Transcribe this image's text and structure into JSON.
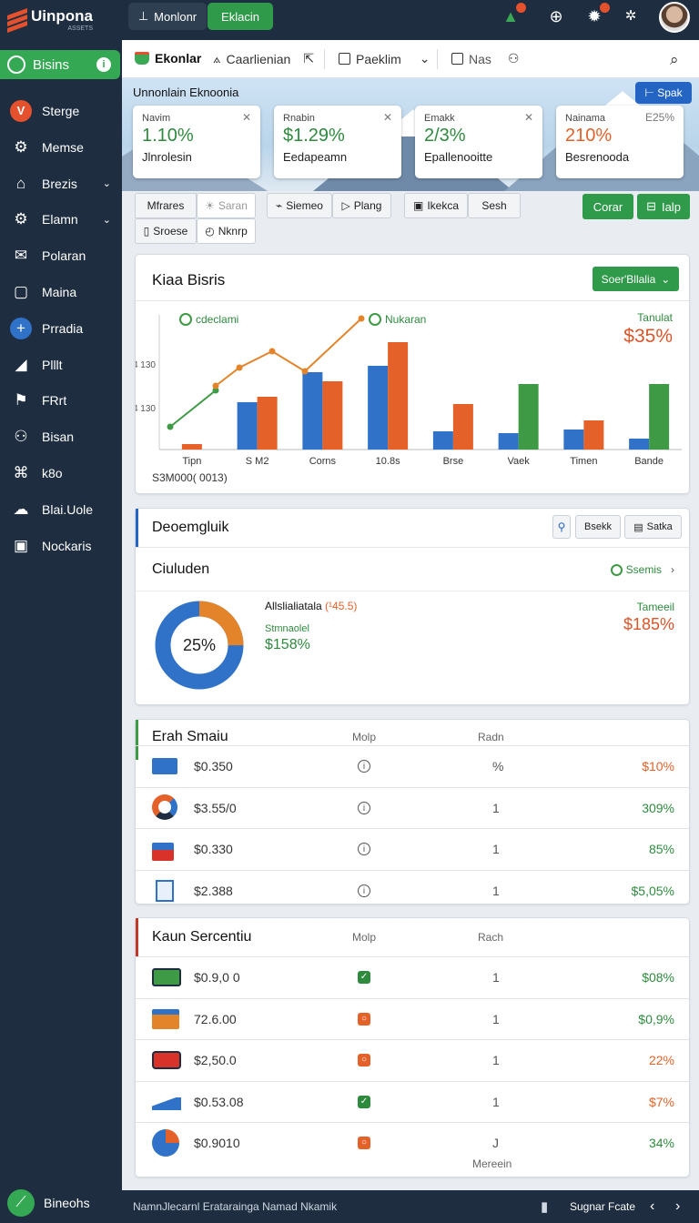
{
  "brand": {
    "name": "Uinpona",
    "sub": "ASSETS"
  },
  "top_tabs": [
    {
      "label": "Monlonr"
    },
    {
      "label": "Eklacin"
    }
  ],
  "top_icons": [
    "bell-icon",
    "compass-icon",
    "gear-icon",
    "settings-icon"
  ],
  "sidebar": {
    "active": "Bisins",
    "items": [
      {
        "label": "Sterge",
        "icon": "v-logo-icon"
      },
      {
        "label": "Memse",
        "icon": "gear-icon"
      },
      {
        "label": "Brezis",
        "icon": "bank-icon",
        "expandable": true
      },
      {
        "label": "Elamn",
        "icon": "gear-icon",
        "expandable": true
      },
      {
        "label": "Polaran",
        "icon": "mail-icon"
      },
      {
        "label": "Maina",
        "icon": "window-icon"
      },
      {
        "label": "Prradia",
        "icon": "plus-circle-icon"
      },
      {
        "label": "Plllt",
        "icon": "chart-icon"
      },
      {
        "label": "FRrt",
        "icon": "flag-icon"
      },
      {
        "label": "Bisan",
        "icon": "users-icon"
      },
      {
        "label": "k8o",
        "icon": "gift-icon"
      },
      {
        "label": "Blai.Uole",
        "icon": "cloud-icon"
      },
      {
        "label": "Nockaris",
        "icon": "frame-icon"
      }
    ],
    "bottom_label": "Bineohs"
  },
  "toolbar": {
    "items": [
      "Ekonlar",
      "Caarlienian",
      "Paeklim",
      "Nas"
    ]
  },
  "hero": {
    "title": "Unnonlain Eknoonia",
    "action": "Spak",
    "stats": [
      {
        "label": "Navim",
        "value": "1.10%",
        "desc": "Jlnrolesin",
        "color": "#2e8b3e"
      },
      {
        "label": "Rnabin",
        "value": "$1.29%",
        "desc": "Eedapeamn",
        "color": "#2e8b3e"
      },
      {
        "label": "Emakk",
        "value": "2/3%",
        "desc": "Epallenooitte",
        "color": "#2e8b3e"
      },
      {
        "label": "Nainama",
        "value": "210%",
        "desc": "Besrenooda",
        "color": "#e0622a",
        "tag": "E25%"
      }
    ]
  },
  "filters": {
    "group1": [
      "Mfrares",
      "Saran",
      "Sroese",
      "Nknrp"
    ],
    "group2": [
      "Siemeo",
      "Plang"
    ],
    "group3": [
      "Ikekca",
      "Sesh"
    ],
    "actions": [
      "Corar",
      "Ialp"
    ]
  },
  "chart_card": {
    "title": "Kiaa Bisris",
    "dropdown": "Soer'Bllalia",
    "legend": [
      {
        "label": "cdeclami"
      },
      {
        "label": "Nukaran"
      }
    ],
    "side_label": "Tanulat",
    "side_value": "$35%",
    "footnote": "S3M000( 0013)"
  },
  "chart_data": {
    "type": "bar",
    "categories": [
      "Tipn",
      "S M2",
      "Corns",
      "10.8s",
      "Brse",
      "Vaek",
      "Timen",
      "Bande"
    ],
    "yticks": [
      "4 130",
      "4 130"
    ],
    "series": [
      {
        "name": "",
        "color": "#2f72c8",
        "values": [
          0,
          52,
          85,
          92,
          20,
          18,
          22,
          12
        ]
      },
      {
        "name": "",
        "color": "#e4612a",
        "values": [
          6,
          58,
          75,
          118,
          50,
          0,
          32,
          0
        ]
      },
      {
        "name": "",
        "color": "#3e9a44",
        "values": [
          0,
          0,
          0,
          0,
          0,
          72,
          0,
          72
        ]
      }
    ],
    "line1": {
      "color": "#3e9a44",
      "values": [
        25,
        45
      ]
    },
    "line2": {
      "color": "#e4842a",
      "values": [
        70,
        100,
        85,
        145
      ]
    }
  },
  "donut_card": {
    "header": "Deoemgluik",
    "header_buttons": [
      "Bsekk",
      "Satka"
    ],
    "title": "Ciuluden",
    "link": "Ssemis",
    "center": "25%",
    "legend_title": "Allslialiatala",
    "legend_tag": "(¹45.5)",
    "line2_label": "Stmnaolel",
    "line2_value": "$158%",
    "side_label": "Tameeil",
    "side_value": "$185%",
    "percent": 25
  },
  "table1": {
    "title": "Erah Smaiu",
    "col_mid": "Molp",
    "col_num": "Radn",
    "rows": [
      {
        "amount": "$0.350",
        "num": "%",
        "pct": "$10%",
        "color": "#e0622a",
        "icon": "card-icon",
        "mid": "info-icon"
      },
      {
        "amount": "$3.55/0",
        "num": "1",
        "pct": "309%",
        "color": "#2e8b3e",
        "icon": "donut-icon",
        "mid": "info-icon"
      },
      {
        "amount": "$0.330",
        "num": "1",
        "pct": "85%",
        "color": "#2e8b3e",
        "icon": "bag-icon",
        "mid": "info-icon"
      },
      {
        "amount": "$2.388",
        "num": "1",
        "pct": "$5,05%",
        "color": "#2e8b3e",
        "icon": "box-icon",
        "mid": "info-icon"
      }
    ]
  },
  "table2": {
    "title": "Kaun Sercentiu",
    "col_mid": "Molp",
    "col_num": "Rach",
    "rows": [
      {
        "amount": "$0.9,0 0",
        "num": "1",
        "pct": "$08%",
        "color": "#2e8b3e",
        "icon": "bus-icon",
        "mid": "check-icon",
        "midcolor": "#2e8b3e"
      },
      {
        "amount": "72.6.00",
        "num": "1",
        "pct": "$0,9%",
        "color": "#2e8b3e",
        "icon": "truck-icon",
        "mid": "circle-icon",
        "midcolor": "#e4612a"
      },
      {
        "amount": "$2,50.0",
        "num": "1",
        "pct": "22%",
        "color": "#e0622a",
        "icon": "train-icon",
        "mid": "circle-icon",
        "midcolor": "#e4612a"
      },
      {
        "amount": "$0.53.08",
        "num": "1",
        "pct": "$7%",
        "color": "#e0622a",
        "icon": "wave-icon",
        "mid": "check-icon",
        "midcolor": "#2e8b3e"
      },
      {
        "amount": "$0.9010",
        "num": "J",
        "pct": "34%",
        "color": "#2e8b3e",
        "icon": "pie-icon",
        "mid": "circle-icon",
        "midcolor": "#e4612a"
      }
    ],
    "footer": "Mereein"
  },
  "footer": {
    "left": "NamnJlecarnl Eratarainga Namad Nkamik",
    "right": "Sugnar Fcate"
  }
}
